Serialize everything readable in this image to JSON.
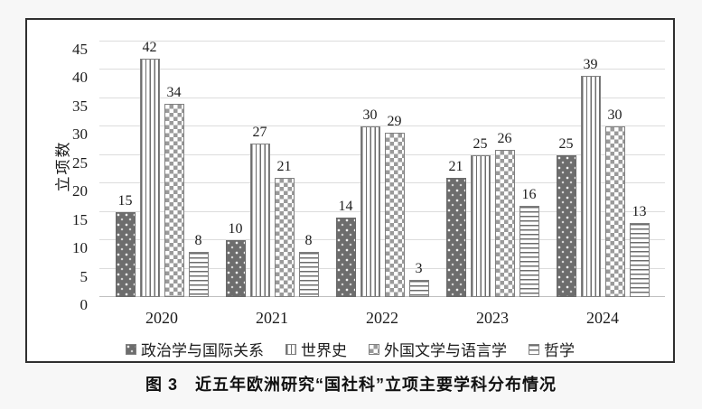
{
  "figure": {
    "caption": "图 3　近五年欧洲研究“国社科”立项主要学科分布情况"
  },
  "chart_data": {
    "type": "bar",
    "title": "",
    "xlabel": "",
    "ylabel": "立项数",
    "ylim": [
      0,
      45
    ],
    "yticks": [
      0,
      5,
      10,
      15,
      20,
      25,
      30,
      35,
      40,
      45
    ],
    "grid": true,
    "legend_position": "bottom",
    "categories": [
      "2020",
      "2021",
      "2022",
      "2023",
      "2024"
    ],
    "series": [
      {
        "name": "政治学与国际关系",
        "pattern": "dots-dark",
        "values": [
          15,
          10,
          14,
          21,
          25
        ]
      },
      {
        "name": "世界史",
        "pattern": "vertical-lines",
        "values": [
          42,
          27,
          30,
          25,
          39
        ]
      },
      {
        "name": "外国文学与语言学",
        "pattern": "diamonds",
        "values": [
          34,
          21,
          29,
          26,
          30
        ]
      },
      {
        "name": "哲学",
        "pattern": "horizontal-lines",
        "values": [
          8,
          8,
          3,
          16,
          13
        ]
      }
    ]
  },
  "colors": {
    "background": "#f7f7f7",
    "panel_background": "#ffffff",
    "panel_border": "#2f2f2f",
    "grid": "#dcdcdc",
    "baseline": "#bfbfbf",
    "bar_dark_fill": "#6d6d6d",
    "bar_line": "#6d6d6d",
    "bar_border": "#808080",
    "diamond": "#9a9a9a",
    "text": "#1c1c1c"
  }
}
